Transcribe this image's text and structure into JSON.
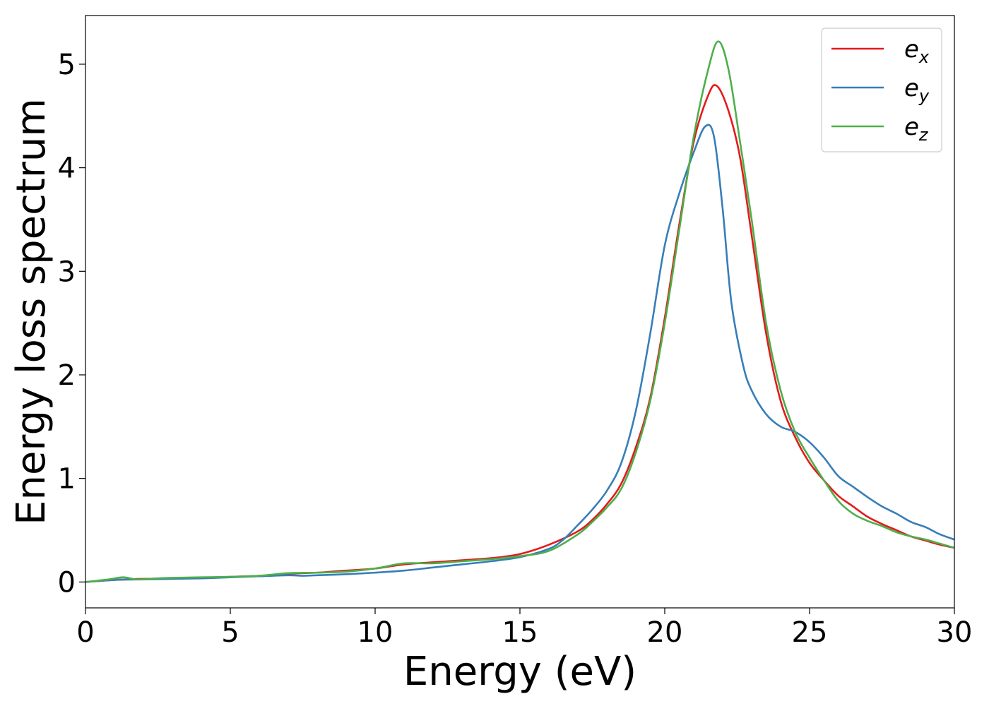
{
  "chart_data": {
    "type": "line",
    "xlabel": "Energy (eV)",
    "ylabel": "Energy loss spectrum",
    "xlim": [
      0,
      30
    ],
    "ylim": [
      -0.25,
      5.47
    ],
    "xticks": [
      0,
      5,
      10,
      15,
      20,
      25,
      30
    ],
    "yticks": [
      0,
      1,
      2,
      3,
      4,
      5
    ],
    "grid": false,
    "legend_position": "top-right",
    "series": [
      {
        "name": "e_x",
        "legend_base": "e",
        "legend_sub": "x",
        "color": "#e41a1c",
        "x": [
          0,
          1,
          2,
          3,
          4,
          5,
          6,
          7,
          8,
          8.5,
          9,
          10,
          11,
          12,
          13,
          14,
          15,
          16,
          17,
          17.5,
          18,
          18.5,
          19,
          19.5,
          20,
          20.5,
          21,
          21.5,
          21.8,
          22.2,
          22.6,
          23,
          23.5,
          24,
          24.5,
          25,
          25.5,
          26,
          26.5,
          27,
          27.5,
          28,
          28.5,
          29,
          29.5,
          30
        ],
        "y": [
          0.0,
          0.02,
          0.03,
          0.035,
          0.04,
          0.05,
          0.06,
          0.08,
          0.09,
          0.1,
          0.11,
          0.13,
          0.17,
          0.19,
          0.21,
          0.23,
          0.27,
          0.36,
          0.49,
          0.6,
          0.75,
          0.95,
          1.3,
          1.78,
          2.55,
          3.45,
          4.25,
          4.7,
          4.79,
          4.55,
          4.1,
          3.35,
          2.4,
          1.75,
          1.4,
          1.15,
          0.98,
          0.83,
          0.73,
          0.63,
          0.56,
          0.5,
          0.44,
          0.4,
          0.36,
          0.33
        ]
      },
      {
        "name": "e_y",
        "legend_base": "e",
        "legend_sub": "y",
        "color": "#377eb8",
        "x": [
          0,
          1,
          2,
          3,
          4,
          5,
          6,
          7,
          7.5,
          8,
          9,
          10,
          11,
          12,
          13,
          14,
          15,
          16,
          16.5,
          17,
          17.5,
          18,
          18.5,
          19,
          19.5,
          20,
          20.5,
          21,
          21.4,
          21.7,
          22,
          22.3,
          22.7,
          23,
          23.5,
          24,
          24.5,
          25,
          25.5,
          26,
          26.5,
          27,
          27.5,
          28,
          28.5,
          29,
          29.5,
          30
        ],
        "y": [
          0.0,
          0.02,
          0.025,
          0.03,
          0.035,
          0.045,
          0.055,
          0.065,
          0.06,
          0.065,
          0.075,
          0.09,
          0.11,
          0.14,
          0.17,
          0.2,
          0.24,
          0.32,
          0.41,
          0.55,
          0.7,
          0.88,
          1.15,
          1.65,
          2.4,
          3.25,
          3.75,
          4.15,
          4.4,
          4.3,
          3.6,
          2.7,
          2.1,
          1.85,
          1.62,
          1.5,
          1.45,
          1.35,
          1.2,
          1.02,
          0.92,
          0.82,
          0.73,
          0.66,
          0.58,
          0.53,
          0.46,
          0.41
        ]
      },
      {
        "name": "e_z",
        "legend_base": "e",
        "legend_sub": "z",
        "color": "#4daf4a",
        "x": [
          0,
          0.8,
          1.3,
          1.8,
          2.5,
          3,
          4,
          5,
          6,
          7,
          8,
          9,
          10,
          11,
          12,
          13,
          14,
          15,
          16,
          17,
          17.5,
          18,
          18.5,
          19,
          19.5,
          20,
          20.5,
          21,
          21.5,
          21.85,
          22.2,
          22.6,
          23,
          23.5,
          24,
          24.5,
          25,
          25.5,
          26,
          26.5,
          27,
          27.5,
          28,
          28.5,
          29,
          29.5,
          30
        ],
        "y": [
          0.0,
          0.025,
          0.045,
          0.025,
          0.035,
          0.04,
          0.045,
          0.05,
          0.06,
          0.085,
          0.09,
          0.1,
          0.13,
          0.18,
          0.18,
          0.2,
          0.22,
          0.25,
          0.3,
          0.46,
          0.58,
          0.72,
          0.9,
          1.25,
          1.75,
          2.5,
          3.4,
          4.3,
          4.95,
          5.22,
          4.95,
          4.25,
          3.5,
          2.5,
          1.85,
          1.45,
          1.2,
          0.98,
          0.78,
          0.66,
          0.59,
          0.54,
          0.48,
          0.44,
          0.41,
          0.37,
          0.33
        ]
      }
    ]
  }
}
